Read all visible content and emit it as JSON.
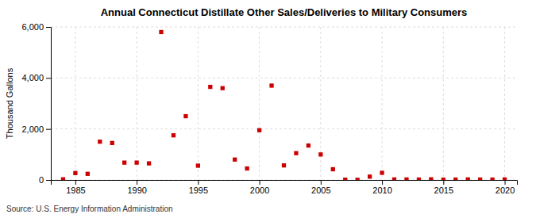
{
  "chart_data": {
    "type": "scatter",
    "title": "Annual Connecticut Distillate Other Sales/Deliveries to Military Consumers",
    "ylabel": "Thousand Gallons",
    "source": "Source: U.S. Energy Information Administration",
    "x": [
      1984,
      1985,
      1986,
      1987,
      1988,
      1989,
      1990,
      1991,
      1992,
      1993,
      1994,
      1995,
      1996,
      1997,
      1998,
      1999,
      2000,
      2001,
      2002,
      2003,
      2004,
      2005,
      2006,
      2007,
      2008,
      2009,
      2010,
      2011,
      2012,
      2013,
      2014,
      2015,
      2016,
      2017,
      2018,
      2019,
      2020
    ],
    "values": [
      25,
      270,
      240,
      1500,
      1450,
      680,
      680,
      650,
      5800,
      1750,
      2500,
      560,
      3650,
      3600,
      800,
      450,
      1950,
      3700,
      570,
      1050,
      1350,
      1000,
      420,
      10,
      5,
      130,
      280,
      20,
      20,
      15,
      25,
      10,
      15,
      20,
      15,
      15,
      20
    ],
    "color": "#cc0000",
    "marker": "square",
    "xlim": [
      1983,
      2021
    ],
    "ylim": [
      0,
      6000
    ],
    "xticks": [
      1985,
      1990,
      1995,
      2000,
      2005,
      2010,
      2015,
      2020
    ],
    "yticks": [
      0,
      {
        "value": 2000,
        "label": "2,000"
      },
      {
        "value": 4000,
        "label": "4,000"
      },
      {
        "value": 6000,
        "label": "6,000"
      }
    ],
    "grid": true
  }
}
